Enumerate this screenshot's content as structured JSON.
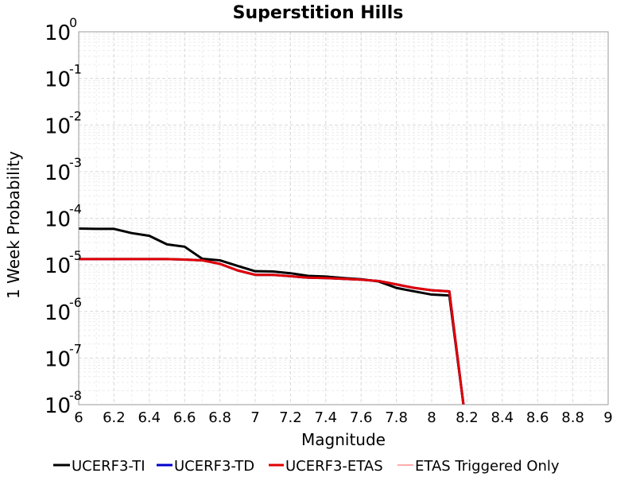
{
  "chart_data": {
    "type": "line",
    "title": "Superstition Hills",
    "xlabel": "Magnitude",
    "ylabel": "1 Week Probability",
    "xlim": [
      6,
      9
    ],
    "ylim": [
      1e-08,
      1
    ],
    "yscale": "log",
    "grid": true,
    "legend_position": "bottom",
    "x_ticks": [
      "6",
      "6.2",
      "6.4",
      "6.6",
      "6.8",
      "7",
      "7.2",
      "7.4",
      "7.6",
      "7.8",
      "8",
      "8.2",
      "8.4",
      "8.6",
      "8.8",
      "9"
    ],
    "y_ticks": [
      {
        "base": "10",
        "exp": "0"
      },
      {
        "base": "10",
        "exp": "-1"
      },
      {
        "base": "10",
        "exp": "-2"
      },
      {
        "base": "10",
        "exp": "-3"
      },
      {
        "base": "10",
        "exp": "-4"
      },
      {
        "base": "10",
        "exp": "-5"
      },
      {
        "base": "10",
        "exp": "-6"
      },
      {
        "base": "10",
        "exp": "-7"
      },
      {
        "base": "10",
        "exp": "-8"
      }
    ],
    "series": [
      {
        "name": "UCERF3-TI",
        "color": "#000000",
        "width": 3,
        "x": [
          6.0,
          6.1,
          6.2,
          6.3,
          6.4,
          6.5,
          6.6,
          6.7,
          6.8,
          6.9,
          7.0,
          7.1,
          7.2,
          7.3,
          7.4,
          7.5,
          7.6,
          7.7,
          7.8,
          7.9,
          8.0,
          8.1,
          8.18
        ],
        "y": [
          6e-05,
          5.9e-05,
          5.9e-05,
          4.8e-05,
          4.2e-05,
          2.75e-05,
          2.45e-05,
          1.35e-05,
          1.25e-05,
          9.5e-06,
          7.3e-06,
          7.2e-06,
          6.6e-06,
          5.8e-06,
          5.6e-06,
          5.2e-06,
          4.9e-06,
          4.4e-06,
          3.2e-06,
          2.7e-06,
          2.3e-06,
          2.2e-06,
          1e-08
        ]
      },
      {
        "name": "UCERF3-TD",
        "color": "#0000cc",
        "width": 3,
        "x": [
          6.0,
          6.1,
          6.2,
          6.3,
          6.4,
          6.5,
          6.6,
          6.7,
          6.8,
          6.9,
          7.0,
          7.1,
          7.2,
          7.3,
          7.4,
          7.5,
          7.6,
          7.7,
          7.8,
          7.9,
          8.0,
          8.1,
          8.18
        ],
        "y": [
          1.33e-05,
          1.33e-05,
          1.33e-05,
          1.33e-05,
          1.33e-05,
          1.33e-05,
          1.3e-05,
          1.25e-05,
          1.05e-05,
          7.6e-06,
          6.1e-06,
          6.1e-06,
          5.7e-06,
          5.3e-06,
          5.2e-06,
          5e-06,
          4.8e-06,
          4.5e-06,
          3.8e-06,
          3.2e-06,
          2.85e-06,
          2.7e-06,
          1e-08
        ]
      },
      {
        "name": "UCERF3-ETAS",
        "color": "#e00000",
        "width": 3,
        "x": [
          6.0,
          6.1,
          6.2,
          6.3,
          6.4,
          6.5,
          6.6,
          6.7,
          6.8,
          6.9,
          7.0,
          7.1,
          7.2,
          7.3,
          7.4,
          7.5,
          7.6,
          7.7,
          7.8,
          7.9,
          8.0,
          8.1,
          8.18
        ],
        "y": [
          1.33e-05,
          1.33e-05,
          1.33e-05,
          1.33e-05,
          1.33e-05,
          1.33e-05,
          1.3e-05,
          1.25e-05,
          1.05e-05,
          7.6e-06,
          6.1e-06,
          6.1e-06,
          5.7e-06,
          5.3e-06,
          5.2e-06,
          5e-06,
          4.8e-06,
          4.5e-06,
          3.8e-06,
          3.2e-06,
          2.85e-06,
          2.7e-06,
          1e-08
        ]
      },
      {
        "name": "ETAS Triggered Only",
        "color": "#ff5a5a",
        "width": 1,
        "x": [],
        "y": []
      }
    ]
  }
}
